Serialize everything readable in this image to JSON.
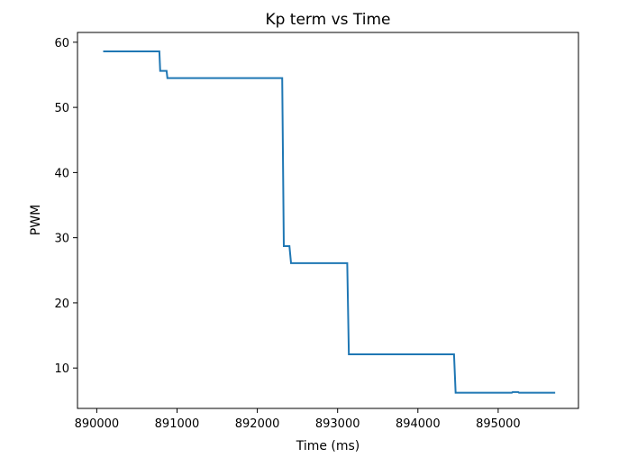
{
  "chart_data": {
    "type": "line",
    "title": "Kp term vs Time",
    "xlabel": "Time (ms)",
    "ylabel": "PWM",
    "xlim": [
      889760,
      896000
    ],
    "ylim": [
      3.8,
      61.5
    ],
    "grid": false,
    "x_ticks": [
      890000,
      891000,
      892000,
      893000,
      894000,
      895000
    ],
    "x_tick_labels": [
      "890000",
      "891000",
      "892000",
      "893000",
      "894000",
      "895000"
    ],
    "y_ticks": [
      10,
      20,
      30,
      40,
      50,
      60
    ],
    "y_tick_labels": [
      "10",
      "20",
      "30",
      "40",
      "50",
      "60"
    ],
    "series": [
      {
        "color": "#1f77b4",
        "x": [
          890080,
          890780,
          890790,
          890870,
          890880,
          892310,
          892330,
          892400,
          892420,
          893120,
          893140,
          894450,
          894470,
          895170,
          895180,
          895250,
          895260,
          895710
        ],
        "y": [
          58.6,
          58.6,
          55.6,
          55.6,
          54.5,
          54.5,
          28.7,
          28.7,
          26.1,
          26.1,
          12.1,
          12.1,
          6.2,
          6.2,
          6.3,
          6.3,
          6.2,
          6.2
        ]
      }
    ]
  }
}
